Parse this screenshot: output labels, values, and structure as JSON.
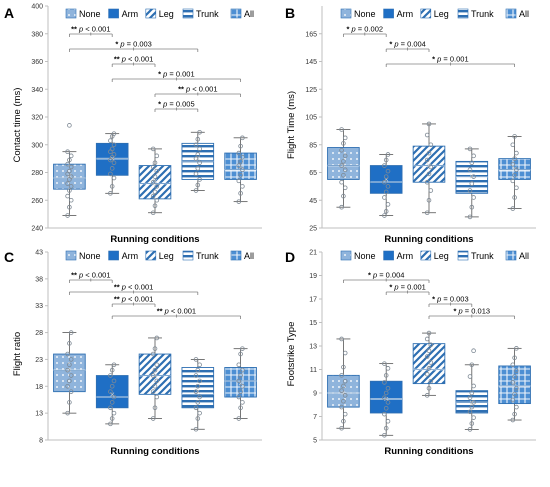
{
  "figure": {
    "xlabel": "Running conditions"
  },
  "legend": [
    {
      "name": "None",
      "pattern": "dots"
    },
    {
      "name": "Arm",
      "pattern": "solid"
    },
    {
      "name": "Leg",
      "pattern": "diag"
    },
    {
      "name": "Trunk",
      "pattern": "hlines"
    },
    {
      "name": "All",
      "pattern": "grid"
    }
  ],
  "colors": {
    "light": "#8fb4dc",
    "dark": "#1f6fc5",
    "edge": "#2e6fb2",
    "point": "#7f8a95",
    "axis": "#bfbfbf",
    "bracket": "#808080"
  },
  "chart_data": [
    {
      "type": "box",
      "panel": "A",
      "ylabel": "Contact time (ms)",
      "ylim": [
        240,
        400
      ],
      "yticks": [
        240,
        260,
        280,
        300,
        320,
        340,
        360,
        380,
        400
      ],
      "categories": [
        "None",
        "Arm",
        "Leg",
        "Trunk",
        "All"
      ],
      "boxes": [
        {
          "q1": 268,
          "median": 276,
          "mean": 278,
          "q3": 286,
          "wlo": 249,
          "whi": 295,
          "points": [
            249,
            255,
            260,
            263,
            267,
            270,
            272,
            275,
            277,
            279,
            281,
            284,
            286,
            289,
            292,
            295,
            314
          ]
        },
        {
          "q1": 278,
          "median": 290,
          "mean": 290,
          "q3": 301,
          "wlo": 265,
          "whi": 308,
          "points": [
            265,
            270,
            276,
            279,
            283,
            287,
            289,
            291,
            293,
            295,
            297,
            300,
            303,
            306,
            308
          ]
        },
        {
          "q1": 261,
          "median": 272,
          "mean": 274,
          "q3": 285,
          "wlo": 251,
          "whi": 297,
          "points": [
            251,
            256,
            260,
            263,
            266,
            270,
            273,
            277,
            281,
            284,
            287,
            292,
            297
          ]
        },
        {
          "q1": 275,
          "median": 288,
          "mean": 290,
          "q3": 301,
          "wlo": 267,
          "whi": 309,
          "points": [
            267,
            271,
            275,
            279,
            283,
            287,
            290,
            293,
            297,
            300,
            304,
            309
          ]
        },
        {
          "q1": 275,
          "median": 282,
          "mean": 284,
          "q3": 294,
          "wlo": 259,
          "whi": 305,
          "points": [
            259,
            265,
            270,
            274,
            278,
            282,
            285,
            288,
            291,
            294,
            299,
            305
          ]
        }
      ],
      "brackets": [
        {
          "from": 0,
          "to": 1,
          "text": "** p < 0.001"
        },
        {
          "from": 0,
          "to": 3,
          "text": "* p = 0.003"
        },
        {
          "from": 1,
          "to": 2,
          "text": "** p < 0.001"
        },
        {
          "from": 1,
          "to": 4,
          "text": "* p = 0.001"
        },
        {
          "from": 2,
          "to": 4,
          "text": "** p < 0.001"
        },
        {
          "from": 2,
          "to": 3,
          "text": "* p = 0.005"
        }
      ]
    },
    {
      "type": "box",
      "panel": "B",
      "ylabel": "Flight Time (ms)",
      "ylim": [
        25,
        185
      ],
      "yticks": [
        25,
        45,
        65,
        85,
        105,
        125,
        145,
        165
      ],
      "categories": [
        "None",
        "Arm",
        "Leg",
        "Trunk",
        "All"
      ],
      "boxes": [
        {
          "q1": 60,
          "median": 70,
          "mean": 70,
          "q3": 83,
          "wlo": 40,
          "whi": 96,
          "points": [
            40,
            48,
            54,
            58,
            63,
            67,
            70,
            73,
            77,
            81,
            86,
            90,
            96
          ]
        },
        {
          "q1": 50,
          "median": 58,
          "mean": 60,
          "q3": 70,
          "wlo": 34,
          "whi": 78,
          "points": [
            34,
            37,
            42,
            47,
            51,
            55,
            58,
            62,
            66,
            70,
            74,
            78
          ]
        },
        {
          "q1": 58,
          "median": 70,
          "mean": 70,
          "q3": 84,
          "wlo": 36,
          "whi": 100,
          "points": [
            36,
            45,
            52,
            58,
            64,
            69,
            74,
            79,
            85,
            92,
            100
          ]
        },
        {
          "q1": 50,
          "median": 62,
          "mean": 62,
          "q3": 73,
          "wlo": 33,
          "whi": 82,
          "points": [
            33,
            40,
            47,
            52,
            57,
            62,
            67,
            72,
            77,
            82
          ]
        },
        {
          "q1": 60,
          "median": 67,
          "mean": 68,
          "q3": 75,
          "wlo": 39,
          "whi": 91,
          "points": [
            39,
            47,
            54,
            59,
            63,
            67,
            71,
            75,
            79,
            85,
            91
          ]
        }
      ],
      "brackets": [
        {
          "from": 0,
          "to": 1,
          "text": "* p = 0.002"
        },
        {
          "from": 1,
          "to": 2,
          "text": "* p = 0.004"
        },
        {
          "from": 1,
          "to": 4,
          "text": "* p = 0.001"
        }
      ]
    },
    {
      "type": "box",
      "panel": "C",
      "ylabel": "Flight ratio",
      "ylim": [
        8,
        43
      ],
      "yticks": [
        8,
        13,
        18,
        23,
        28,
        33,
        38,
        43
      ],
      "categories": [
        "None",
        "Arm",
        "Leg",
        "Trunk",
        "All"
      ],
      "boxes": [
        {
          "q1": 17,
          "median": 21,
          "mean": 21,
          "q3": 24,
          "wlo": 13,
          "whi": 28,
          "points": [
            13,
            15,
            17,
            18,
            19,
            20,
            21,
            22,
            23,
            24,
            26,
            28
          ]
        },
        {
          "q1": 14,
          "median": 16,
          "mean": 16.5,
          "q3": 20,
          "wlo": 11,
          "whi": 22,
          "points": [
            11,
            12,
            13,
            14,
            15,
            16,
            17,
            18,
            19,
            20,
            21,
            22
          ]
        },
        {
          "q1": 16.5,
          "median": 20,
          "mean": 20,
          "q3": 24,
          "wlo": 12,
          "whi": 27,
          "points": [
            12,
            14,
            16,
            17,
            18,
            19,
            20,
            21,
            22,
            24,
            25,
            27
          ]
        },
        {
          "q1": 14,
          "median": 16.5,
          "mean": 17,
          "q3": 21.5,
          "wlo": 10,
          "whi": 23,
          "points": [
            10,
            12,
            13,
            14,
            15,
            16,
            17,
            18,
            19,
            20,
            21,
            22,
            23
          ]
        },
        {
          "q1": 16,
          "median": 19,
          "mean": 18.5,
          "q3": 21.5,
          "wlo": 12,
          "whi": 25,
          "points": [
            12,
            14,
            15,
            16,
            17,
            18,
            19,
            20,
            21,
            22,
            24,
            25
          ]
        }
      ],
      "brackets": [
        {
          "from": 0,
          "to": 1,
          "text": "** p < 0.001"
        },
        {
          "from": 0,
          "to": 3,
          "text": "** p < 0.001"
        },
        {
          "from": 1,
          "to": 2,
          "text": "** p < 0.001"
        },
        {
          "from": 1,
          "to": 4,
          "text": "** p < 0.001"
        }
      ]
    },
    {
      "type": "box",
      "panel": "D",
      "ylabel": "Footstrike Type",
      "ylim": [
        5,
        21
      ],
      "yticks": [
        5,
        7,
        9,
        11,
        13,
        15,
        17,
        19,
        21
      ],
      "categories": [
        "None",
        "Arm",
        "Leg",
        "Trunk",
        "All"
      ],
      "boxes": [
        {
          "q1": 7.8,
          "median": 9,
          "mean": 9,
          "q3": 10.5,
          "wlo": 6,
          "whi": 13.6,
          "points": [
            6,
            6.6,
            7.2,
            7.8,
            8.3,
            8.8,
            9.2,
            9.6,
            10,
            10.5,
            11.2,
            12.4,
            13.6
          ]
        },
        {
          "q1": 7.3,
          "median": 8.5,
          "mean": 8.5,
          "q3": 10,
          "wlo": 5.4,
          "whi": 11.5,
          "points": [
            5.4,
            6,
            6.6,
            7.2,
            7.7,
            8.2,
            8.6,
            9,
            9.4,
            9.9,
            10.5,
            11.1,
            11.5
          ]
        },
        {
          "q1": 9.8,
          "median": 11,
          "mean": 11.2,
          "q3": 13.2,
          "wlo": 8.8,
          "whi": 14.1,
          "points": [
            8.8,
            9.4,
            10,
            10.6,
            11.1,
            11.6,
            12.1,
            12.6,
            13.1,
            13.6,
            14.1
          ]
        },
        {
          "q1": 7.3,
          "median": 8.2,
          "mean": 8.2,
          "q3": 9.2,
          "wlo": 5.9,
          "whi": 11.4,
          "points": [
            5.9,
            6.4,
            6.9,
            7.4,
            7.8,
            8.2,
            8.6,
            9,
            9.6,
            10.4,
            11.4,
            12.6
          ]
        },
        {
          "q1": 8.1,
          "median": 9.6,
          "mean": 9.8,
          "q3": 11.3,
          "wlo": 6.7,
          "whi": 12.8,
          "points": [
            6.7,
            7.2,
            7.8,
            8.4,
            8.9,
            9.4,
            9.9,
            10.4,
            10.9,
            11.4,
            12,
            12.8
          ]
        }
      ],
      "brackets": [
        {
          "from": 0,
          "to": 2,
          "text": "* p = 0.004"
        },
        {
          "from": 1,
          "to": 2,
          "text": "* p = 0.001"
        },
        {
          "from": 2,
          "to": 3,
          "text": "* p = 0.003"
        },
        {
          "from": 2,
          "to": 4,
          "text": "* p = 0.013"
        }
      ]
    }
  ]
}
